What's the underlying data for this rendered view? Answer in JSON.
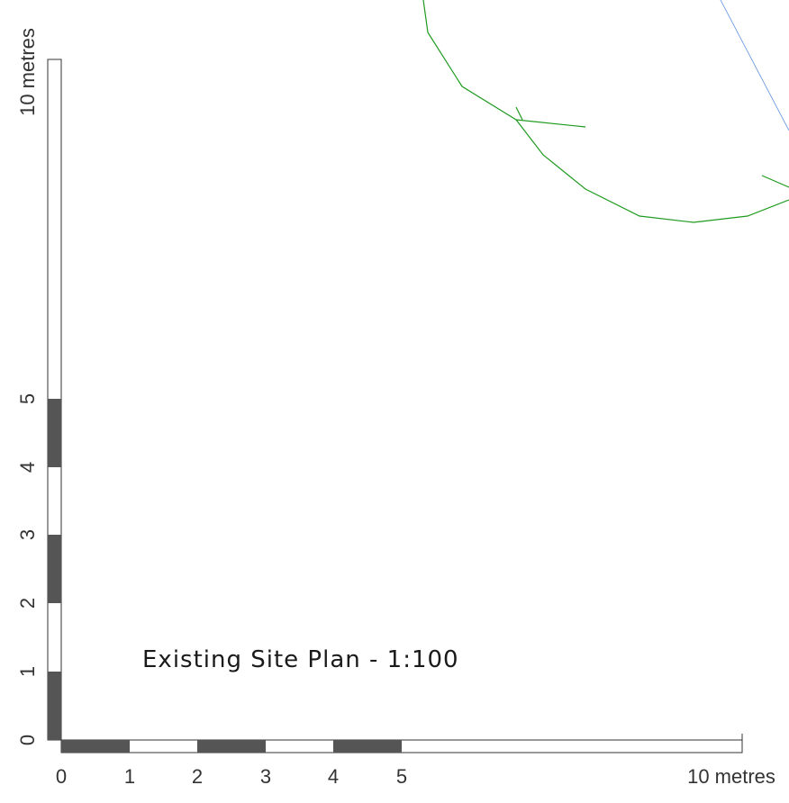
{
  "drawing": {
    "title": "Existing Site Plan - 1:100",
    "colors": {
      "scale_dark": "#555555",
      "scale_light": "#ffffff",
      "scale_outline": "#333333",
      "feature_green": "#1f9a1f",
      "feature_blue": "#5b8fe0"
    }
  },
  "horizontal_scale": {
    "tick_labels": [
      "0",
      "1",
      "2",
      "3",
      "4",
      "5"
    ],
    "end_label": "10 metres"
  },
  "vertical_scale": {
    "tick_labels": [
      "0",
      "1",
      "2",
      "3",
      "4",
      "5"
    ],
    "end_label": "10 metres"
  }
}
